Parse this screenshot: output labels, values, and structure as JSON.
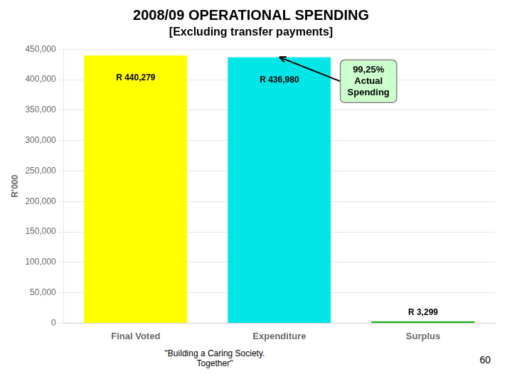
{
  "chart_data": {
    "type": "bar",
    "title": "2008/09 OPERATIONAL SPENDING",
    "subtitle": "[Excluding transfer payments]",
    "ylabel": "R’000",
    "categories": [
      "Final Voted",
      "Expenditure",
      "Surplus"
    ],
    "values": [
      440279,
      436980,
      3299
    ],
    "value_labels": [
      "R 440,279",
      "R 436,980",
      "R 3,299"
    ],
    "data_labels": true,
    "colors": [
      "#FFFF00",
      "#00E5E5",
      "#00AA00"
    ],
    "ylim": [
      0,
      450000
    ],
    "yticks": [
      0,
      {
        "value": 50000,
        "label": "50,000"
      },
      {
        "value": 100000,
        "label": "100,000"
      },
      {
        "value": 150000,
        "label": "150,000"
      },
      {
        "value": 200000,
        "label": "200,000"
      },
      {
        "value": 250000,
        "label": "250,000"
      },
      {
        "value": 300000,
        "label": "300,000"
      },
      {
        "value": 350000,
        "label": "350,000"
      },
      {
        "value": 400000,
        "label": "400,000"
      },
      {
        "value": 450000,
        "label": "450,000"
      }
    ],
    "grid": true,
    "annotations": [
      {
        "text": "99,25%\nActual\nSpending",
        "x": "Expenditure",
        "y": 436980
      }
    ],
    "footer": [
      "\"Building a Caring Society.\nTogether\"",
      "60"
    ]
  }
}
